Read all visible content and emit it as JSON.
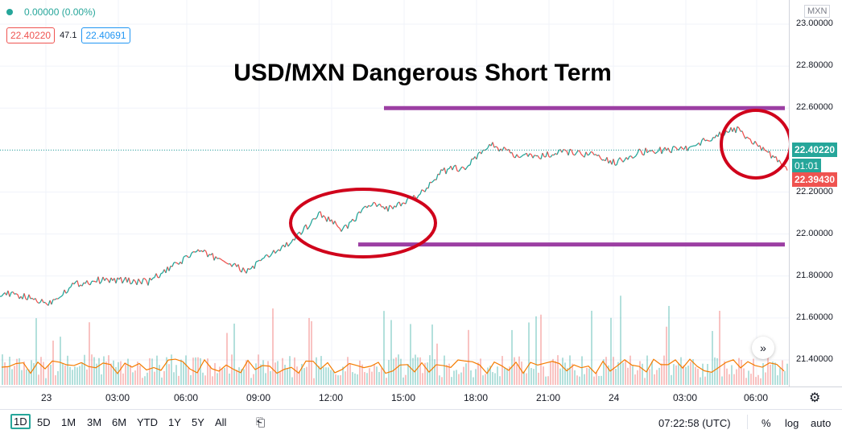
{
  "legend": {
    "change": "0.00000 (0.00%)",
    "bid": "22.40220",
    "spread": "47.1",
    "ask": "22.40691"
  },
  "price_scale": {
    "symbol": "MXN",
    "last_price": "22.40220",
    "countdown": "01:01",
    "bid_price": "22.39430"
  },
  "annotation_title": "USD/MXN Dangerous Short Term",
  "time_axis": {
    "labels": [
      "23",
      "03:00",
      "06:00",
      "09:00",
      "12:00",
      "15:00",
      "18:00",
      "21:00",
      "24",
      "03:00",
      "06:00"
    ]
  },
  "toolbar": {
    "ranges": [
      "1D",
      "5D",
      "1M",
      "3M",
      "6M",
      "YTD",
      "1Y",
      "5Y",
      "All"
    ],
    "active_range": "1D",
    "clock": "07:22:58 (UTC)",
    "percent": "%",
    "log": "log",
    "auto": "auto"
  },
  "colors": {
    "up": "#26a69a",
    "down": "#ef5350",
    "annotation_line": "#9c3fa3",
    "annotation_circle": "#d0021b",
    "volume_ma": "#f57c00"
  },
  "chart_data": {
    "type": "line",
    "title": "USD/MXN Dangerous Short Term",
    "series": [
      {
        "x": [
          "23 00:00",
          "23 01:00",
          "23 02:00",
          "23 03:00",
          "23 04:00",
          "23 05:00",
          "23 06:00",
          "23 07:00",
          "23 08:00",
          "23 09:00",
          "23 10:00",
          "23 11:00",
          "23 12:00",
          "23 13:00",
          "23 14:00",
          "23 15:00",
          "23 16:00",
          "23 17:00",
          "23 18:00",
          "23 19:00",
          "23 20:00",
          "23 21:00",
          "23 22:00",
          "23 23:00",
          "24 00:00",
          "24 01:00",
          "24 02:00",
          "24 03:00",
          "24 04:00",
          "24 05:00",
          "24 06:00",
          "24 07:00"
        ],
        "values": [
          21.72,
          21.7,
          21.67,
          21.76,
          21.78,
          21.78,
          21.77,
          21.84,
          21.92,
          21.88,
          21.82,
          21.9,
          21.97,
          22.1,
          22.02,
          22.14,
          22.12,
          22.18,
          22.3,
          22.32,
          22.43,
          22.37,
          22.37,
          22.39,
          22.38,
          22.34,
          22.39,
          22.4,
          22.41,
          22.46,
          22.5,
          22.41
        ]
      }
    ],
    "annotations": {
      "resistance": 22.6,
      "support": 21.95
    },
    "ylim": [
      21.3,
      23.05
    ],
    "yticks": [
      21.4,
      21.6,
      21.8,
      22.0,
      22.2,
      22.4,
      22.6,
      22.8,
      23.0
    ],
    "ytick_labels": [
      "21.40000",
      "21.60000",
      "21.80000",
      "22.00000",
      "22.20000",
      "22.40000",
      "22.60000",
      "22.80000",
      "23.00000"
    ],
    "grid": true,
    "volume": true
  }
}
